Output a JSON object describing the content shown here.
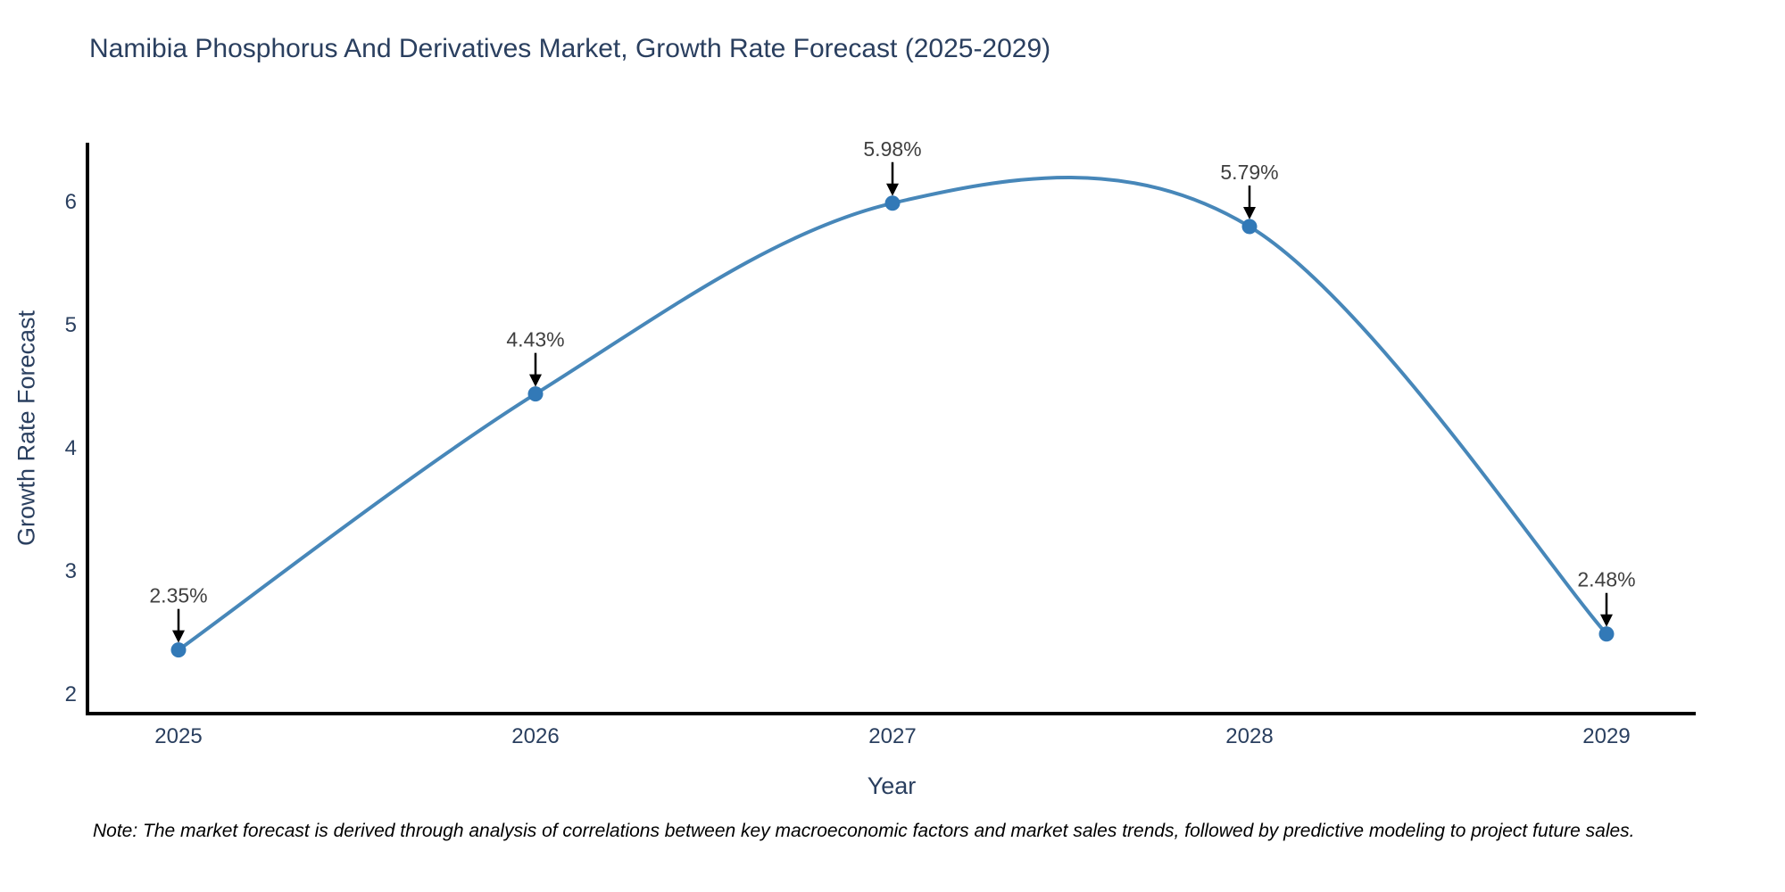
{
  "figure": {
    "title": "Namibia Phosphorus And Derivatives Market, Growth Rate Forecast (2025-2029)",
    "note": "Note: The market forecast is derived through analysis of correlations between key macroeconomic factors and market sales trends, followed by predictive modeling to project future sales."
  },
  "chart_data": {
    "type": "line",
    "title": "Namibia Phosphorus And Derivatives Market, Growth Rate Forecast (2025-2029)",
    "xlabel": "Year",
    "ylabel": "Growth Rate Forecast",
    "x": [
      2025,
      2026,
      2027,
      2028,
      2029
    ],
    "values": [
      2.35,
      4.43,
      5.98,
      5.79,
      2.48
    ],
    "point_labels": [
      "2.35%",
      "4.43%",
      "5.98%",
      "5.79%",
      "2.48%"
    ],
    "yticks": [
      2,
      3,
      4,
      5,
      6
    ],
    "xticks": [
      2025,
      2026,
      2027,
      2028,
      2029
    ],
    "ylim": [
      1.833,
      6.471
    ],
    "xlim": [
      2024.745,
      2029.25
    ],
    "line_shape": "spline",
    "grid": false,
    "legend_position": "none",
    "annotations_style": "value label with downward black arrow to each point",
    "colors": {
      "line": "#4787b9",
      "marker": "#3279b7",
      "arrow": "#000000",
      "axis_line": "#000000",
      "axis_text": "#2a3f5f",
      "annotation_text": "#404040",
      "background": "#ffffff"
    }
  }
}
